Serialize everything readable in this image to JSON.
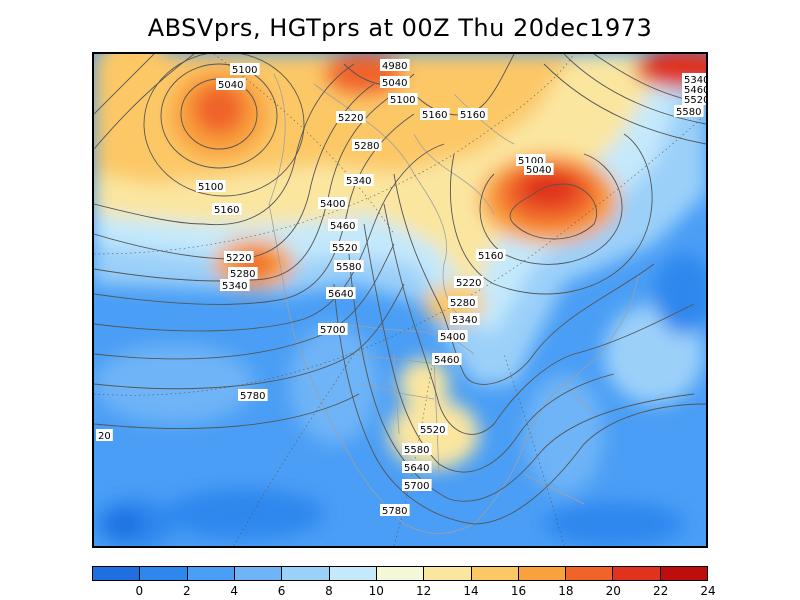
{
  "title": "ABSVprs, HGTprs at 00Z Thu 20dec1973",
  "map": {
    "variables": [
      "ABSVprs",
      "HGTprs"
    ],
    "contour_labels": [
      {
        "text": "5100"
      },
      {
        "text": "5040"
      },
      {
        "text": "4980"
      },
      {
        "text": "5040"
      },
      {
        "text": "5100"
      },
      {
        "text": "5160"
      },
      {
        "text": "5160"
      },
      {
        "text": "5220"
      },
      {
        "text": "5280"
      },
      {
        "text": "5340"
      },
      {
        "text": "5100"
      },
      {
        "text": "5160"
      },
      {
        "text": "5400"
      },
      {
        "text": "5460"
      },
      {
        "text": "5520"
      },
      {
        "text": "5220"
      },
      {
        "text": "5280"
      },
      {
        "text": "5340"
      },
      {
        "text": "5580"
      },
      {
        "text": "5100"
      },
      {
        "text": "5040"
      },
      {
        "text": "5160"
      },
      {
        "text": "5220"
      },
      {
        "text": "5280"
      },
      {
        "text": "5340"
      },
      {
        "text": "5640"
      },
      {
        "text": "5700"
      },
      {
        "text": "5400"
      },
      {
        "text": "5460"
      },
      {
        "text": "5780"
      },
      {
        "text": "5520"
      },
      {
        "text": "5580"
      },
      {
        "text": "5640"
      },
      {
        "text": "5700"
      },
      {
        "text": "5780"
      },
      {
        "text": "5580"
      },
      {
        "text": "5340"
      },
      {
        "text": "5460"
      },
      {
        "text": "5520"
      },
      {
        "text": "20"
      }
    ]
  },
  "colorbar": {
    "colors": [
      "#1f6fe0",
      "#2f87ee",
      "#4a9ef5",
      "#6eb4f7",
      "#9bd0f9",
      "#c4e9fb",
      "#f4f8d8",
      "#fbe6a0",
      "#fcc866",
      "#f9a13c",
      "#f0642a",
      "#e0321c",
      "#bd0d0d"
    ],
    "labels": [
      "0",
      "2",
      "4",
      "6",
      "8",
      "10",
      "12",
      "14",
      "16",
      "18",
      "20",
      "22",
      "24"
    ]
  }
}
